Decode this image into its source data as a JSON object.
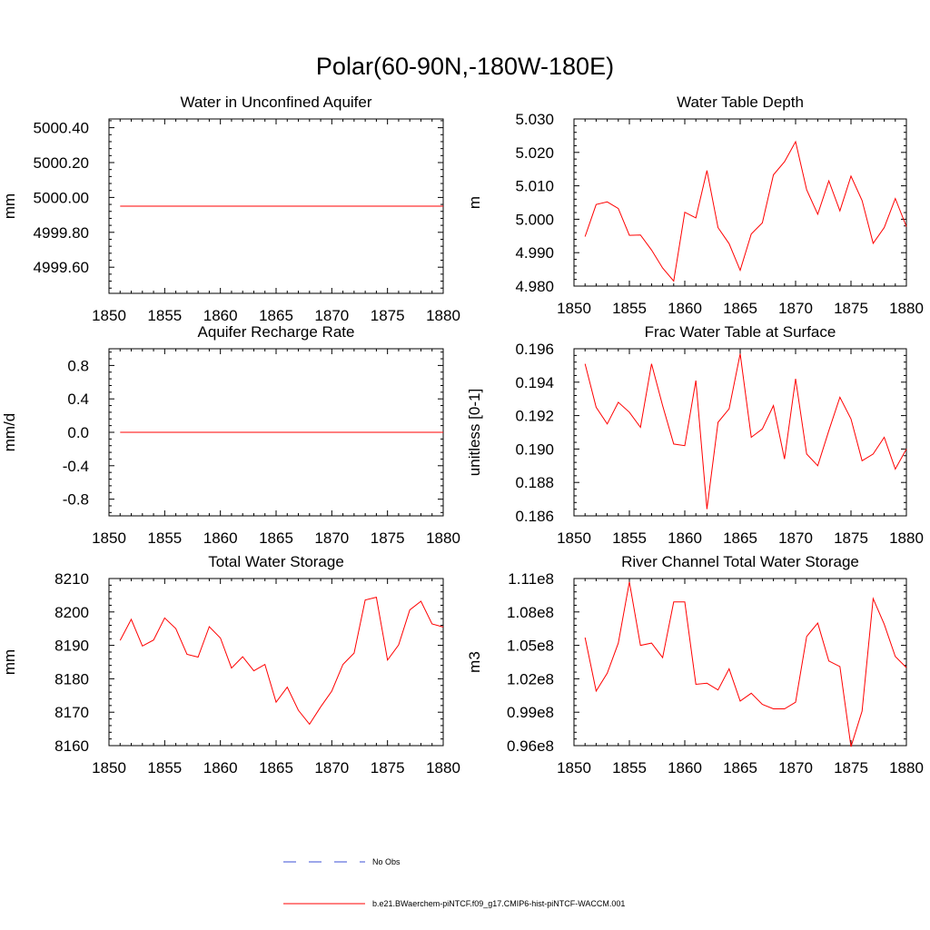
{
  "page_title": "Polar(60-90N,-180W-180E)",
  "colors": {
    "model": "#ff0000",
    "obs": "#3b4fd6",
    "axis": "#000000"
  },
  "legend": {
    "obs_label": "No Obs",
    "model_label": "b.e21.BWaerchem-piNTCF.f09_g17.CMIP6-hist-piNTCF-WACCM.001"
  },
  "chart_data": [
    {
      "type": "line",
      "title": "Water in Unconfined Aquifer",
      "ylabel": "mm",
      "xlim": [
        1850,
        1880
      ],
      "ylim": [
        4999.45,
        5000.45
      ],
      "xticks": [
        1850,
        1855,
        1860,
        1865,
        1870,
        1875,
        1880
      ],
      "yticks": [
        4999.6,
        4999.8,
        5000.0,
        5000.2,
        5000.4
      ],
      "ytick_labels": [
        "4999.60",
        "4999.80",
        "5000.00",
        "5000.20",
        "5000.40"
      ],
      "x": [
        1851,
        1852,
        1853,
        1854,
        1855,
        1856,
        1857,
        1858,
        1859,
        1860,
        1861,
        1862,
        1863,
        1864,
        1865,
        1866,
        1867,
        1868,
        1869,
        1870,
        1871,
        1872,
        1873,
        1874,
        1875,
        1876,
        1877,
        1878,
        1879,
        1880
      ],
      "values": [
        4999.95,
        4999.95,
        4999.95,
        4999.95,
        4999.95,
        4999.95,
        4999.95,
        4999.95,
        4999.95,
        4999.95,
        4999.95,
        4999.95,
        4999.95,
        4999.95,
        4999.95,
        4999.95,
        4999.95,
        4999.95,
        4999.95,
        4999.95,
        4999.95,
        4999.95,
        4999.95,
        4999.95,
        4999.95,
        4999.95,
        4999.95,
        4999.95,
        4999.95,
        4999.95
      ]
    },
    {
      "type": "line",
      "title": "Water Table Depth",
      "ylabel": "m",
      "xlim": [
        1850,
        1880
      ],
      "ylim": [
        4.98,
        5.03
      ],
      "xticks": [
        1850,
        1855,
        1860,
        1865,
        1870,
        1875,
        1880
      ],
      "yticks": [
        4.98,
        4.99,
        5.0,
        5.01,
        5.02,
        5.03
      ],
      "ytick_labels": [
        "4.980",
        "4.990",
        "5.000",
        "5.010",
        "5.020",
        "5.030"
      ],
      "x": [
        1851,
        1852,
        1853,
        1854,
        1855,
        1856,
        1857,
        1858,
        1859,
        1860,
        1861,
        1862,
        1863,
        1864,
        1865,
        1866,
        1867,
        1868,
        1869,
        1870,
        1871,
        1872,
        1873,
        1874,
        1875,
        1876,
        1877,
        1878,
        1879,
        1880
      ],
      "values": [
        4.9948,
        5.0044,
        5.0052,
        5.0032,
        4.9952,
        4.9953,
        4.9908,
        4.9854,
        4.9815,
        5.0021,
        5.0004,
        5.0146,
        4.9975,
        4.9927,
        4.9847,
        4.9956,
        4.9989,
        5.0133,
        5.0172,
        5.0232,
        5.0088,
        5.0015,
        5.0115,
        5.0025,
        5.0129,
        5.0056,
        4.9928,
        4.9975,
        5.0062,
        4.9978
      ]
    },
    {
      "type": "line",
      "title": "Aquifer Recharge Rate",
      "ylabel": "mm/d",
      "xlim": [
        1850,
        1880
      ],
      "ylim": [
        -1.0,
        1.0
      ],
      "xticks": [
        1850,
        1855,
        1860,
        1865,
        1870,
        1875,
        1880
      ],
      "yticks": [
        -0.8,
        -0.4,
        0.0,
        0.4,
        0.8
      ],
      "ytick_labels": [
        "-0.8",
        "-0.4",
        "0.0",
        "0.4",
        "0.8"
      ],
      "x": [
        1851,
        1852,
        1853,
        1854,
        1855,
        1856,
        1857,
        1858,
        1859,
        1860,
        1861,
        1862,
        1863,
        1864,
        1865,
        1866,
        1867,
        1868,
        1869,
        1870,
        1871,
        1872,
        1873,
        1874,
        1875,
        1876,
        1877,
        1878,
        1879,
        1880
      ],
      "values": [
        0,
        0,
        0,
        0,
        0,
        0,
        0,
        0,
        0,
        0,
        0,
        0,
        0,
        0,
        0,
        0,
        0,
        0,
        0,
        0,
        0,
        0,
        0,
        0,
        0,
        0,
        0,
        0,
        0,
        0
      ]
    },
    {
      "type": "line",
      "title": "Frac Water Table at Surface",
      "ylabel": "unitless [0-1]",
      "xlim": [
        1850,
        1880
      ],
      "ylim": [
        0.186,
        0.196
      ],
      "xticks": [
        1850,
        1855,
        1860,
        1865,
        1870,
        1875,
        1880
      ],
      "yticks": [
        0.186,
        0.188,
        0.19,
        0.192,
        0.194,
        0.196
      ],
      "ytick_labels": [
        "0.186",
        "0.188",
        "0.190",
        "0.192",
        "0.194",
        "0.196"
      ],
      "x": [
        1851,
        1852,
        1853,
        1854,
        1855,
        1856,
        1857,
        1858,
        1859,
        1860,
        1861,
        1862,
        1863,
        1864,
        1865,
        1866,
        1867,
        1868,
        1869,
        1870,
        1871,
        1872,
        1873,
        1874,
        1875,
        1876,
        1877,
        1878,
        1879,
        1880
      ],
      "values": [
        0.1951,
        0.1925,
        0.1915,
        0.1928,
        0.1922,
        0.1913,
        0.1951,
        0.1926,
        0.1903,
        0.1902,
        0.1941,
        0.1864,
        0.1916,
        0.1924,
        0.1957,
        0.1907,
        0.1912,
        0.1926,
        0.1894,
        0.1942,
        0.1897,
        0.189,
        0.1911,
        0.1931,
        0.1918,
        0.1893,
        0.1897,
        0.1907,
        0.1888,
        0.19
      ]
    },
    {
      "type": "line",
      "title": "Total Water Storage",
      "ylabel": "mm",
      "xlim": [
        1850,
        1880
      ],
      "ylim": [
        8160,
        8210
      ],
      "xticks": [
        1850,
        1855,
        1860,
        1865,
        1870,
        1875,
        1880
      ],
      "yticks": [
        8160,
        8170,
        8180,
        8190,
        8200,
        8210
      ],
      "ytick_labels": [
        "8160",
        "8170",
        "8180",
        "8190",
        "8200",
        "8210"
      ],
      "x": [
        1851,
        1852,
        1853,
        1854,
        1855,
        1856,
        1857,
        1858,
        1859,
        1860,
        1861,
        1862,
        1863,
        1864,
        1865,
        1866,
        1867,
        1868,
        1869,
        1870,
        1871,
        1872,
        1873,
        1874,
        1875,
        1876,
        1877,
        1878,
        1879,
        1880
      ],
      "values": [
        8191.5,
        8197.8,
        8189.8,
        8191.6,
        8198.2,
        8195.0,
        8187.3,
        8186.5,
        8195.6,
        8192.2,
        8183.2,
        8186.6,
        8182.4,
        8184.3,
        8173.0,
        8177.5,
        8170.6,
        8166.4,
        8171.6,
        8176.3,
        8184.3,
        8187.7,
        8203.6,
        8204.4,
        8185.6,
        8190.1,
        8200.6,
        8203.2,
        8196.4,
        8195.5
      ]
    },
    {
      "type": "line",
      "title": "River Channel Total Water Storage",
      "ylabel": "m3",
      "xlim": [
        1850,
        1880
      ],
      "ylim": [
        0.96,
        1.11
      ],
      "y_multiplier": "1e8",
      "xticks": [
        1850,
        1855,
        1860,
        1865,
        1870,
        1875,
        1880
      ],
      "yticks": [
        0.96,
        0.99,
        1.02,
        1.05,
        1.08,
        1.11
      ],
      "ytick_labels": [
        "0.96e8",
        "0.99e8",
        "1.02e8",
        "1.05e8",
        "1.08e8",
        "1.11e8"
      ],
      "x": [
        1851,
        1852,
        1853,
        1854,
        1855,
        1856,
        1857,
        1858,
        1859,
        1860,
        1861,
        1862,
        1863,
        1864,
        1865,
        1866,
        1867,
        1868,
        1869,
        1870,
        1871,
        1872,
        1873,
        1874,
        1875,
        1876,
        1877,
        1878,
        1879,
        1880
      ],
      "values": [
        1.057,
        1.009,
        1.025,
        1.052,
        1.107,
        1.05,
        1.052,
        1.039,
        1.089,
        1.089,
        1.015,
        1.016,
        1.01,
        1.029,
        1.0,
        1.007,
        0.997,
        0.993,
        0.993,
        0.999,
        1.058,
        1.07,
        1.036,
        1.031,
        0.959,
        0.991,
        1.092,
        1.069,
        1.04,
        1.03
      ]
    }
  ]
}
